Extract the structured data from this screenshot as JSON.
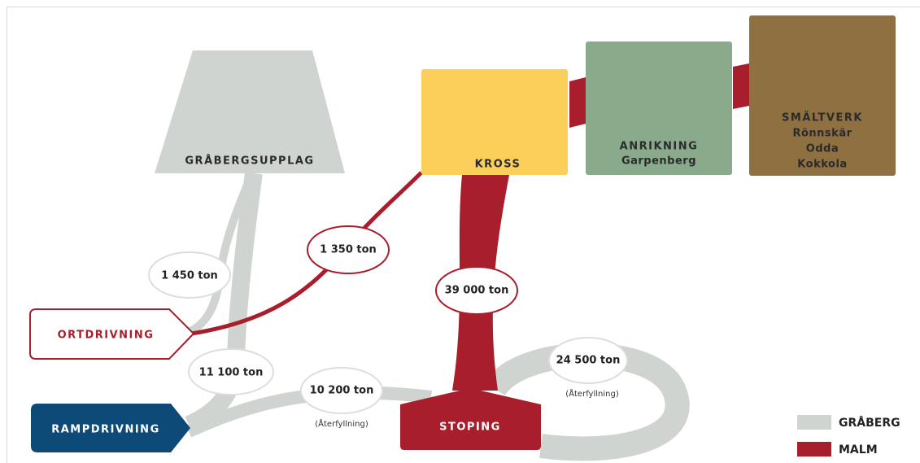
{
  "nodes": [
    {
      "label": "GRÅBERGSUPPLAG"
    },
    {
      "label": "KROSS"
    },
    {
      "label": "ANRIKNING",
      "sub": [
        "Garpenberg"
      ]
    },
    {
      "label": "SMÄLTVERK",
      "sub": [
        "Rönnskär",
        "Odda",
        "Kokkola"
      ]
    },
    {
      "label": "ORTDRIVNING"
    },
    {
      "label": "RAMPDRIVNING"
    },
    {
      "label": "STOPING"
    }
  ],
  "flows": [
    {
      "label": "1 450 ton"
    },
    {
      "label": "1 350 ton"
    },
    {
      "label": "39 000 ton"
    },
    {
      "label": "11 100 ton"
    },
    {
      "label": "10 200 ton",
      "note": "(Återfyllning)"
    },
    {
      "label": "24 500 ton",
      "note": "(Återfyllning)"
    }
  ],
  "legend": [
    {
      "label": "GRÅBERG"
    },
    {
      "label": "MALM"
    }
  ]
}
